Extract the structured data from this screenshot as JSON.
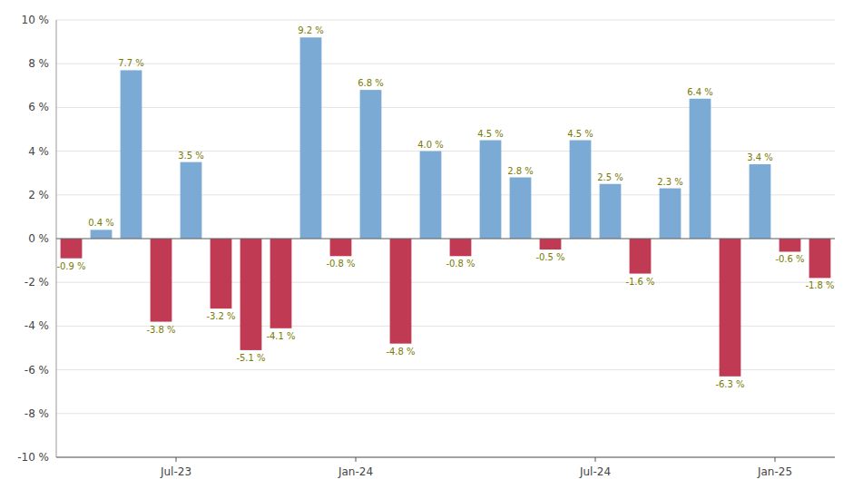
{
  "chart_data": {
    "type": "bar",
    "categories": [
      null,
      null,
      null,
      null,
      "Jul-23",
      null,
      null,
      null,
      null,
      null,
      "Jan-24",
      null,
      null,
      null,
      null,
      null,
      null,
      null,
      "Jul-24",
      null,
      null,
      null,
      null,
      null,
      "Jan-25",
      null
    ],
    "values": [
      -0.9,
      0.4,
      7.7,
      -3.8,
      3.5,
      -3.2,
      -5.1,
      -4.1,
      9.2,
      -0.8,
      6.8,
      -4.8,
      4.0,
      -0.8,
      4.5,
      2.8,
      -0.5,
      4.5,
      2.5,
      -1.6,
      2.3,
      6.4,
      -6.3,
      3.4,
      -0.6,
      -1.8
    ],
    "value_labels": [
      "-0.9 %",
      "0.4 %",
      "7.7 %",
      "-3.8 %",
      "3.5 %",
      "-3.2 %",
      "-5.1 %",
      "-4.1 %",
      "9.2 %",
      "-0.8 %",
      "6.8 %",
      "-4.8 %",
      "4.0 %",
      "-0.8 %",
      "4.5 %",
      "2.8 %",
      "-0.5 %",
      "4.5 %",
      "2.5 %",
      "-1.6 %",
      "2.3 %",
      "6.4 %",
      "-6.3 %",
      "3.4 %",
      "-0.6 %",
      "-1.8 %"
    ],
    "colors": [
      "#bf3a52",
      "#7baad4",
      "#7baad4",
      "#bf3a52",
      "#7baad4",
      "#bf3a52",
      "#bf3a52",
      "#bf3a52",
      "#7baad4",
      "#bf3a52",
      "#7baad4",
      "#bf3a52",
      "#7baad4",
      "#bf3a52",
      "#7baad4",
      "#7baad4",
      "#bf3a52",
      "#7baad4",
      "#7baad4",
      "#bf3a52",
      "#7baad4",
      "#7baad4",
      "#bf3a52",
      "#7baad4",
      "#bf3a52",
      "#bf3a52"
    ],
    "ylim": [
      -10,
      10
    ],
    "yticks": [
      {
        "value": -10,
        "label": "-10 %"
      },
      {
        "value": -8,
        "label": "-8 %"
      },
      {
        "value": -6,
        "label": "-6 %"
      },
      {
        "value": -4,
        "label": "-4 %"
      },
      {
        "value": -2,
        "label": "-2 %"
      },
      {
        "value": 0,
        "label": "0 %"
      },
      {
        "value": 2,
        "label": "2 %"
      },
      {
        "value": 4,
        "label": "4 %"
      },
      {
        "value": 6,
        "label": "6 %"
      },
      {
        "value": 8,
        "label": "8 %"
      },
      {
        "value": 10,
        "label": "10 %"
      }
    ],
    "grid": true,
    "data_labels": true
  }
}
